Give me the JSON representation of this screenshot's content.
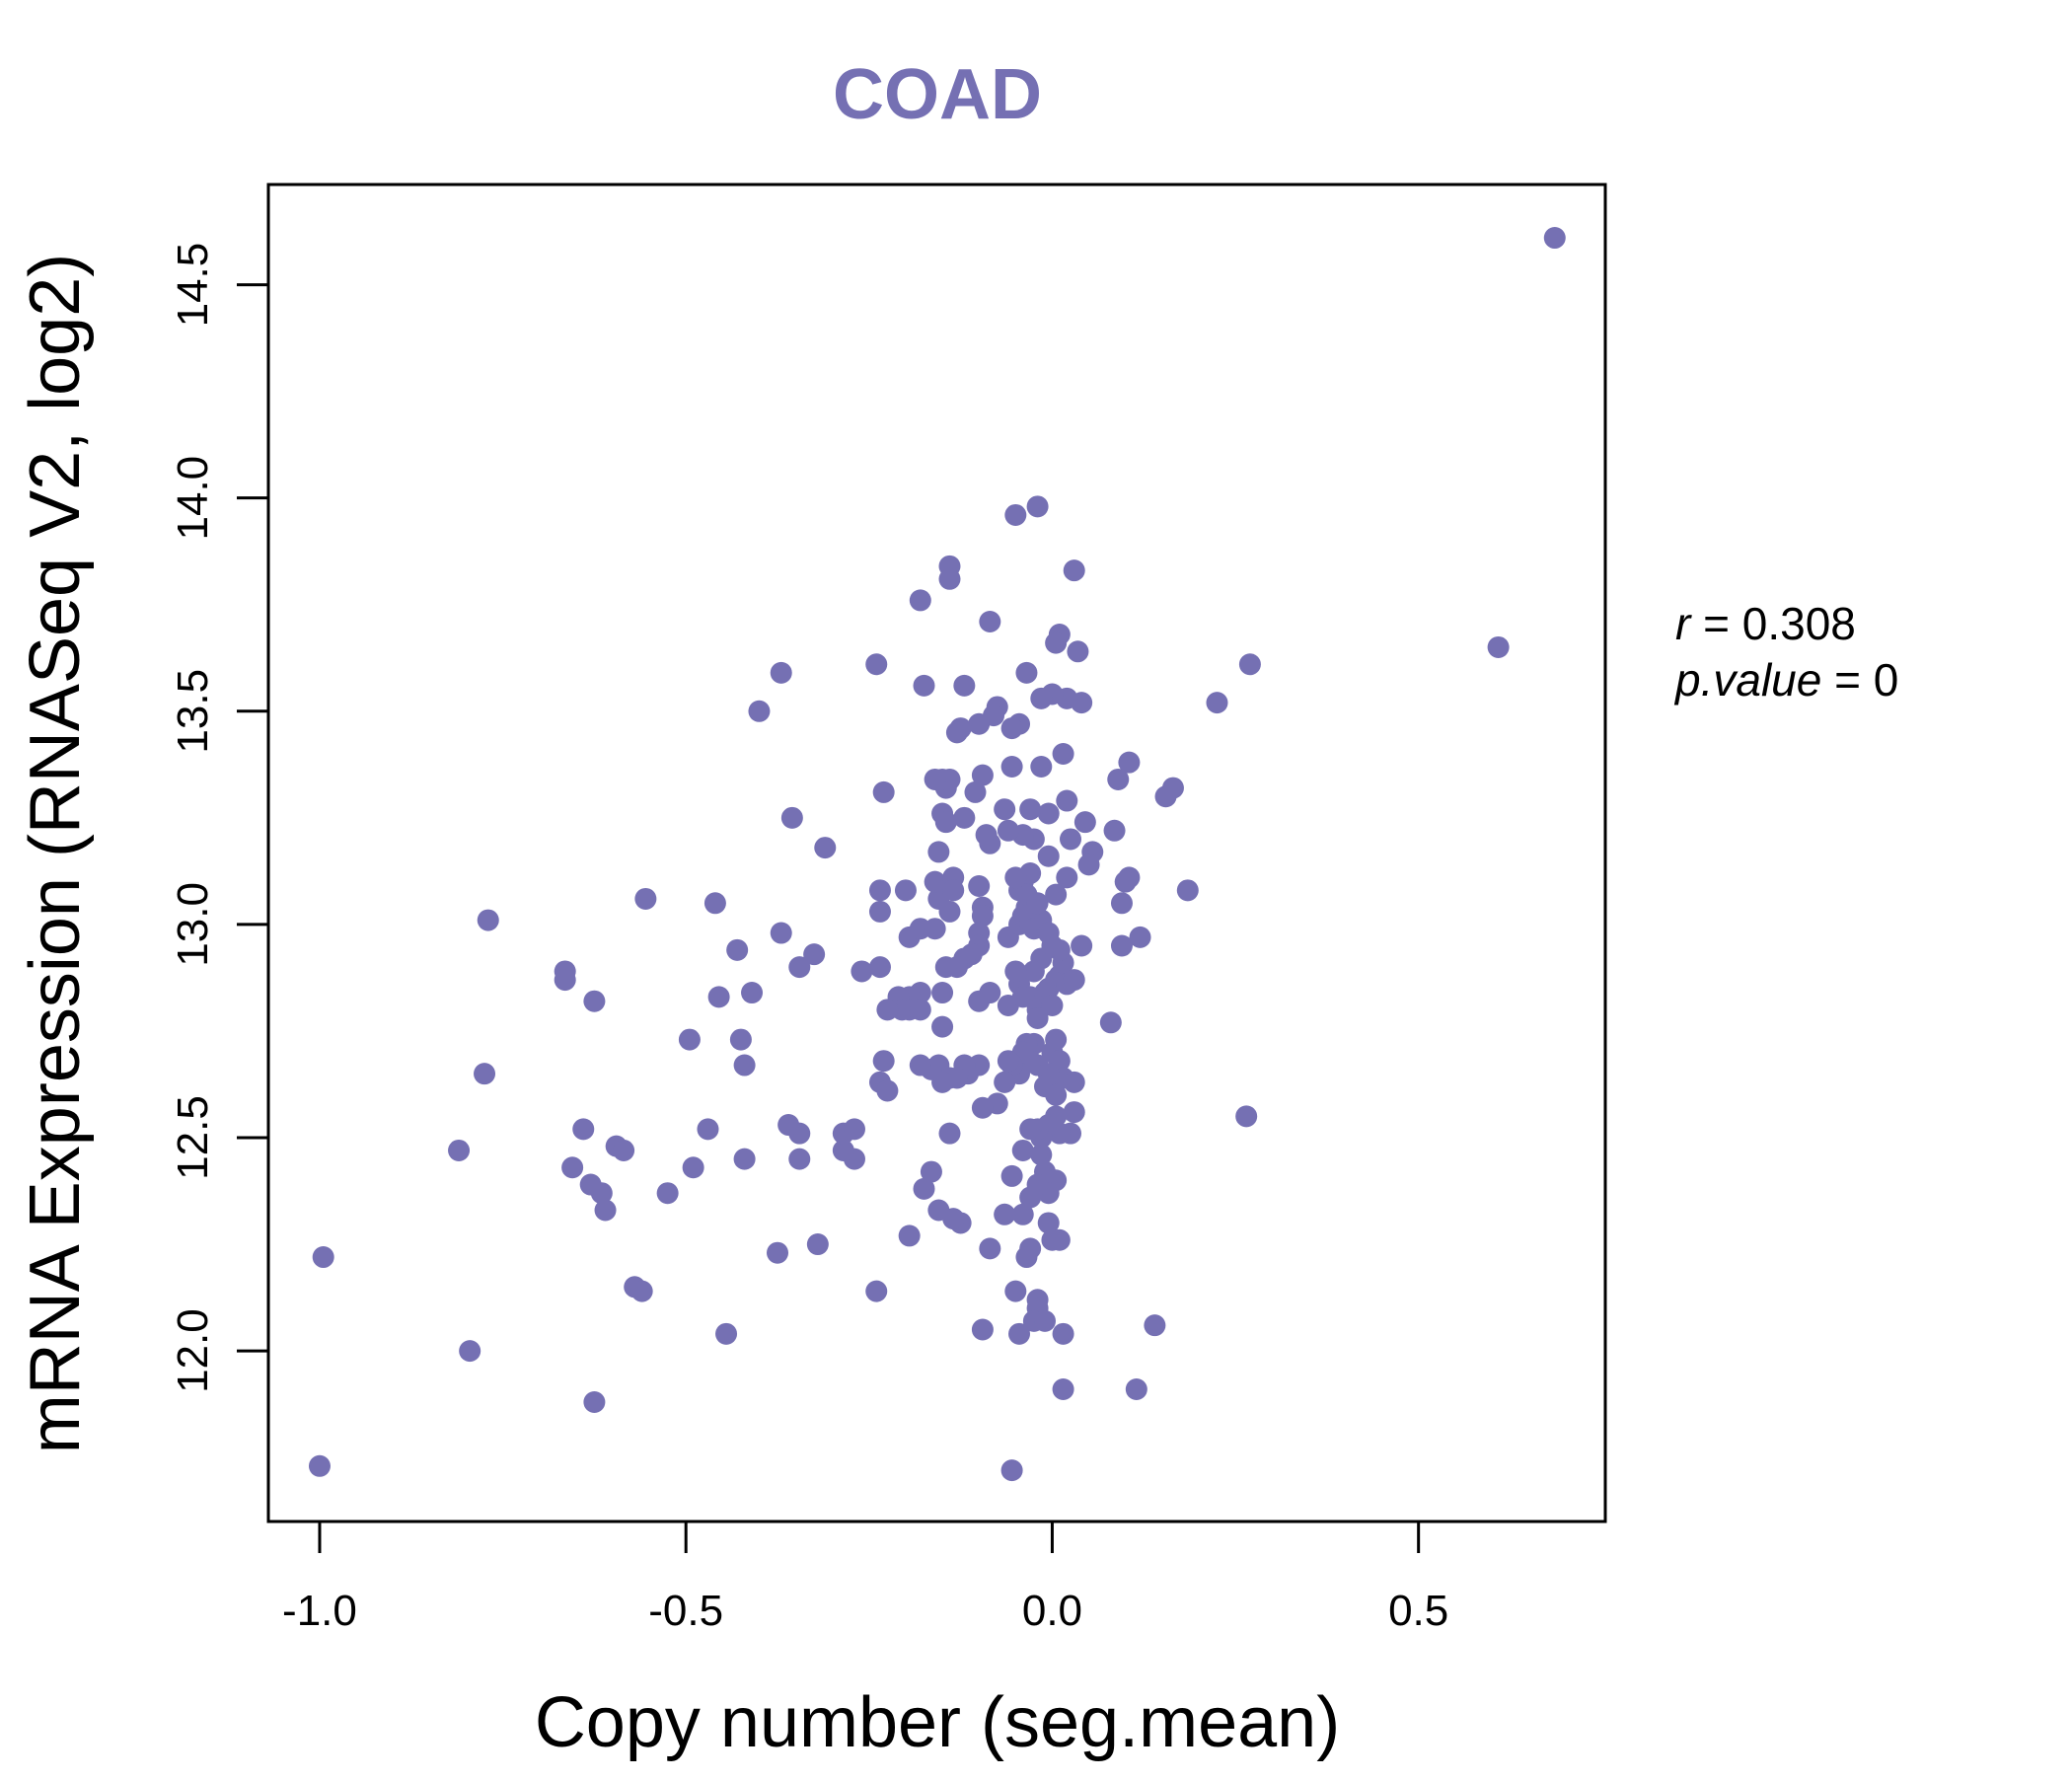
{
  "chart_data": {
    "type": "scatter",
    "title": "COAD",
    "xlabel": "Copy number (seg.mean)",
    "ylabel": "mRNA Expression (RNASeq V2, log2)",
    "xlim": [
      -1.07,
      0.755
    ],
    "ylim": [
      11.6,
      14.735
    ],
    "x_ticks": [
      -1.0,
      -0.5,
      0.0,
      0.5
    ],
    "x_tick_labels": [
      "-1.0",
      "-0.5",
      "0.0",
      "0.5"
    ],
    "y_ticks": [
      12.0,
      12.5,
      13.0,
      13.5,
      14.0,
      14.5
    ],
    "y_tick_labels": [
      "12.0",
      "12.5",
      "13.0",
      "13.5",
      "14.0",
      "14.5"
    ],
    "grid": false,
    "stats": {
      "r_label": "r",
      "r_value": "0.308",
      "p_label": "p.value",
      "p_value": "0"
    },
    "colors": {
      "accent": "#7570b3",
      "axis": "#000000",
      "background": "#ffffff"
    },
    "points": [
      {
        "x": 0.686,
        "y": 14.61
      },
      {
        "x": 0.609,
        "y": 13.65
      },
      {
        "x": 0.27,
        "y": 13.61
      },
      {
        "x": 0.225,
        "y": 13.52
      },
      {
        "x": 0.265,
        "y": 12.55
      },
      {
        "x": 0.185,
        "y": 13.08
      },
      {
        "x": 0.165,
        "y": 13.32
      },
      {
        "x": 0.155,
        "y": 13.3
      },
      {
        "x": 0.105,
        "y": 13.38
      },
      {
        "x": 0.105,
        "y": 13.11
      },
      {
        "x": 0.1,
        "y": 13.1
      },
      {
        "x": 0.095,
        "y": 13.05
      },
      {
        "x": 0.12,
        "y": 12.97
      },
      {
        "x": 0.095,
        "y": 12.95
      },
      {
        "x": 0.085,
        "y": 13.22
      },
      {
        "x": 0.09,
        "y": 13.34
      },
      {
        "x": 0.08,
        "y": 12.77
      },
      {
        "x": 0.14,
        "y": 12.06
      },
      {
        "x": 0.115,
        "y": 11.91
      },
      {
        "x": 0.055,
        "y": 13.17
      },
      {
        "x": 0.05,
        "y": 13.14
      },
      {
        "x": 0.045,
        "y": 13.24
      },
      {
        "x": 0.04,
        "y": 13.52
      },
      {
        "x": 0.035,
        "y": 13.64
      },
      {
        "x": 0.03,
        "y": 13.83
      },
      {
        "x": 0.025,
        "y": 13.2
      },
      {
        "x": 0.02,
        "y": 13.29
      },
      {
        "x": 0.02,
        "y": 13.11
      },
      {
        "x": 0.02,
        "y": 13.53
      },
      {
        "x": 0.015,
        "y": 13.4
      },
      {
        "x": 0.01,
        "y": 13.68
      },
      {
        "x": 0.005,
        "y": 13.66
      },
      {
        "x": 0.0,
        "y": 13.54
      },
      {
        "x": -0.005,
        "y": 13.26
      },
      {
        "x": -0.005,
        "y": 13.16
      },
      {
        "x": 0.005,
        "y": 13.07
      },
      {
        "x": -0.015,
        "y": 13.53
      },
      {
        "x": -0.015,
        "y": 13.37
      },
      {
        "x": -0.02,
        "y": 13.98
      },
      {
        "x": -0.025,
        "y": 13.2
      },
      {
        "x": -0.03,
        "y": 13.27
      },
      {
        "x": -0.035,
        "y": 13.59
      },
      {
        "x": -0.04,
        "y": 13.21
      },
      {
        "x": -0.045,
        "y": 13.47
      },
      {
        "x": -0.05,
        "y": 13.96
      },
      {
        "x": -0.055,
        "y": 13.46
      },
      {
        "x": -0.055,
        "y": 13.37
      },
      {
        "x": -0.06,
        "y": 13.22
      },
      {
        "x": -0.065,
        "y": 13.27
      },
      {
        "x": -0.075,
        "y": 13.51
      },
      {
        "x": -0.08,
        "y": 13.49
      },
      {
        "x": -0.085,
        "y": 13.71
      },
      {
        "x": -0.085,
        "y": 13.19
      },
      {
        "x": -0.09,
        "y": 13.21
      },
      {
        "x": -0.095,
        "y": 13.35
      },
      {
        "x": -0.1,
        "y": 13.47
      },
      {
        "x": -0.105,
        "y": 13.31
      },
      {
        "x": -0.12,
        "y": 13.56
      },
      {
        "x": -0.125,
        "y": 13.46
      },
      {
        "x": -0.12,
        "y": 13.25
      },
      {
        "x": -0.13,
        "y": 13.45
      },
      {
        "x": -0.14,
        "y": 13.84
      },
      {
        "x": -0.14,
        "y": 13.81
      },
      {
        "x": -0.14,
        "y": 13.34
      },
      {
        "x": -0.145,
        "y": 13.32
      },
      {
        "x": -0.15,
        "y": 13.34
      },
      {
        "x": -0.15,
        "y": 13.26
      },
      {
        "x": -0.145,
        "y": 13.24
      },
      {
        "x": -0.155,
        "y": 13.17
      },
      {
        "x": -0.16,
        "y": 13.34
      },
      {
        "x": -0.175,
        "y": 13.56
      },
      {
        "x": -0.18,
        "y": 13.76
      },
      {
        "x": -0.24,
        "y": 13.61
      },
      {
        "x": -0.23,
        "y": 13.31
      },
      {
        "x": -0.2,
        "y": 13.08
      },
      {
        "x": -0.235,
        "y": 13.08
      },
      {
        "x": -0.235,
        "y": 13.03
      },
      {
        "x": -0.195,
        "y": 12.97
      },
      {
        "x": -0.18,
        "y": 12.99
      },
      {
        "x": -0.16,
        "y": 12.99
      },
      {
        "x": -0.155,
        "y": 13.06
      },
      {
        "x": -0.16,
        "y": 13.1
      },
      {
        "x": -0.135,
        "y": 13.11
      },
      {
        "x": -0.135,
        "y": 13.08
      },
      {
        "x": -0.14,
        "y": 13.03
      },
      {
        "x": -0.1,
        "y": 13.09
      },
      {
        "x": -0.095,
        "y": 13.04
      },
      {
        "x": -0.095,
        "y": 13.02
      },
      {
        "x": -0.1,
        "y": 12.98
      },
      {
        "x": -0.1,
        "y": 12.95
      },
      {
        "x": -0.11,
        "y": 12.93
      },
      {
        "x": -0.12,
        "y": 12.92
      },
      {
        "x": -0.13,
        "y": 12.9
      },
      {
        "x": -0.145,
        "y": 12.9
      },
      {
        "x": -0.235,
        "y": 12.9
      },
      {
        "x": -0.26,
        "y": 12.89
      },
      {
        "x": -0.18,
        "y": 12.84
      },
      {
        "x": -0.195,
        "y": 12.83
      },
      {
        "x": -0.21,
        "y": 12.83
      },
      {
        "x": -0.195,
        "y": 12.8
      },
      {
        "x": -0.205,
        "y": 12.8
      },
      {
        "x": -0.225,
        "y": 12.8
      },
      {
        "x": -0.18,
        "y": 12.8
      },
      {
        "x": -0.15,
        "y": 12.84
      },
      {
        "x": -0.15,
        "y": 12.76
      },
      {
        "x": -0.1,
        "y": 12.82
      },
      {
        "x": -0.085,
        "y": 12.84
      },
      {
        "x": -0.06,
        "y": 12.81
      },
      {
        "x": -0.045,
        "y": 12.86
      },
      {
        "x": -0.04,
        "y": 12.83
      },
      {
        "x": -0.03,
        "y": 12.83
      },
      {
        "x": -0.02,
        "y": 12.8
      },
      {
        "x": -0.02,
        "y": 12.78
      },
      {
        "x": -0.01,
        "y": 12.84
      },
      {
        "x": -0.005,
        "y": 12.85
      },
      {
        "x": 0.0,
        "y": 12.81
      },
      {
        "x": 0.005,
        "y": 12.87
      },
      {
        "x": 0.01,
        "y": 12.88
      },
      {
        "x": 0.015,
        "y": 12.91
      },
      {
        "x": 0.02,
        "y": 12.86
      },
      {
        "x": 0.03,
        "y": 12.87
      },
      {
        "x": 0.04,
        "y": 12.95
      },
      {
        "x": 0.01,
        "y": 12.94
      },
      {
        "x": -0.015,
        "y": 12.92
      },
      {
        "x": -0.025,
        "y": 12.89
      },
      {
        "x": -0.05,
        "y": 12.89
      },
      {
        "x": -0.06,
        "y": 12.97
      },
      {
        "x": -0.045,
        "y": 13.0
      },
      {
        "x": -0.04,
        "y": 13.02
      },
      {
        "x": -0.035,
        "y": 13.04
      },
      {
        "x": -0.03,
        "y": 13.0
      },
      {
        "x": -0.025,
        "y": 12.99
      },
      {
        "x": -0.015,
        "y": 13.01
      },
      {
        "x": -0.005,
        "y": 12.98
      },
      {
        "x": 0.0,
        "y": 12.95
      },
      {
        "x": -0.045,
        "y": 13.08
      },
      {
        "x": -0.04,
        "y": 13.1
      },
      {
        "x": -0.035,
        "y": 13.07
      },
      {
        "x": -0.03,
        "y": 13.12
      },
      {
        "x": -0.05,
        "y": 13.11
      },
      {
        "x": -0.025,
        "y": 13.04
      },
      {
        "x": -0.02,
        "y": 13.05
      },
      {
        "x": 0.0,
        "y": 12.7
      },
      {
        "x": 0.005,
        "y": 12.73
      },
      {
        "x": 0.01,
        "y": 12.68
      },
      {
        "x": 0.015,
        "y": 12.64
      },
      {
        "x": -0.005,
        "y": 12.65
      },
      {
        "x": -0.01,
        "y": 12.62
      },
      {
        "x": 0.005,
        "y": 12.6
      },
      {
        "x": 0.03,
        "y": 12.63
      },
      {
        "x": 0.03,
        "y": 12.56
      },
      {
        "x": 0.025,
        "y": 12.51
      },
      {
        "x": 0.01,
        "y": 12.51
      },
      {
        "x": 0.005,
        "y": 12.55
      },
      {
        "x": -0.005,
        "y": 12.53
      },
      {
        "x": -0.015,
        "y": 12.5
      },
      {
        "x": -0.02,
        "y": 12.52
      },
      {
        "x": -0.03,
        "y": 12.52
      },
      {
        "x": -0.02,
        "y": 12.67
      },
      {
        "x": -0.025,
        "y": 12.72
      },
      {
        "x": -0.03,
        "y": 12.68
      },
      {
        "x": -0.035,
        "y": 12.72
      },
      {
        "x": -0.04,
        "y": 12.7
      },
      {
        "x": -0.045,
        "y": 12.65
      },
      {
        "x": -0.055,
        "y": 12.67
      },
      {
        "x": -0.06,
        "y": 12.68
      },
      {
        "x": -0.065,
        "y": 12.63
      },
      {
        "x": -0.075,
        "y": 12.58
      },
      {
        "x": -0.095,
        "y": 12.57
      },
      {
        "x": -0.1,
        "y": 12.67
      },
      {
        "x": -0.115,
        "y": 12.65
      },
      {
        "x": -0.12,
        "y": 12.67
      },
      {
        "x": -0.13,
        "y": 12.64
      },
      {
        "x": -0.14,
        "y": 12.64
      },
      {
        "x": -0.15,
        "y": 12.63
      },
      {
        "x": -0.155,
        "y": 12.67
      },
      {
        "x": -0.165,
        "y": 12.66
      },
      {
        "x": -0.18,
        "y": 12.67
      },
      {
        "x": -0.23,
        "y": 12.68
      },
      {
        "x": -0.235,
        "y": 12.63
      },
      {
        "x": -0.225,
        "y": 12.61
      },
      {
        "x": -0.14,
        "y": 12.51
      },
      {
        "x": -0.04,
        "y": 12.47
      },
      {
        "x": -0.015,
        "y": 12.46
      },
      {
        "x": -0.01,
        "y": 12.42
      },
      {
        "x": 0.005,
        "y": 12.4
      },
      {
        "x": -0.005,
        "y": 12.37
      },
      {
        "x": -0.02,
        "y": 12.39
      },
      {
        "x": -0.03,
        "y": 12.36
      },
      {
        "x": -0.04,
        "y": 12.32
      },
      {
        "x": -0.055,
        "y": 12.41
      },
      {
        "x": -0.065,
        "y": 12.32
      },
      {
        "x": -0.005,
        "y": 12.3
      },
      {
        "x": 0.0,
        "y": 12.26
      },
      {
        "x": 0.01,
        "y": 12.26
      },
      {
        "x": -0.03,
        "y": 12.24
      },
      {
        "x": -0.035,
        "y": 12.22
      },
      {
        "x": -0.085,
        "y": 12.24
      },
      {
        "x": -0.125,
        "y": 12.3
      },
      {
        "x": -0.135,
        "y": 12.31
      },
      {
        "x": -0.155,
        "y": 12.33
      },
      {
        "x": -0.175,
        "y": 12.38
      },
      {
        "x": -0.165,
        "y": 12.42
      },
      {
        "x": -0.195,
        "y": 12.27
      },
      {
        "x": -0.24,
        "y": 12.14
      },
      {
        "x": -0.05,
        "y": 12.14
      },
      {
        "x": -0.02,
        "y": 12.12
      },
      {
        "x": -0.02,
        "y": 12.1
      },
      {
        "x": -0.025,
        "y": 12.07
      },
      {
        "x": -0.01,
        "y": 12.07
      },
      {
        "x": -0.045,
        "y": 12.04
      },
      {
        "x": -0.095,
        "y": 12.05
      },
      {
        "x": 0.015,
        "y": 12.04
      },
      {
        "x": 0.015,
        "y": 11.91
      },
      {
        "x": -0.055,
        "y": 11.72
      },
      {
        "x": -0.27,
        "y": 12.45
      },
      {
        "x": -0.285,
        "y": 12.47
      },
      {
        "x": -0.285,
        "y": 12.51
      },
      {
        "x": -0.27,
        "y": 12.52
      },
      {
        "x": -0.32,
        "y": 12.25
      },
      {
        "x": -0.345,
        "y": 12.51
      },
      {
        "x": -0.36,
        "y": 12.53
      },
      {
        "x": -0.345,
        "y": 12.45
      },
      {
        "x": -0.375,
        "y": 12.23
      },
      {
        "x": -0.31,
        "y": 13.18
      },
      {
        "x": -0.355,
        "y": 13.25
      },
      {
        "x": -0.37,
        "y": 13.59
      },
      {
        "x": -0.4,
        "y": 13.5
      },
      {
        "x": -0.325,
        "y": 12.93
      },
      {
        "x": -0.345,
        "y": 12.9
      },
      {
        "x": -0.37,
        "y": 12.98
      },
      {
        "x": -0.41,
        "y": 12.84
      },
      {
        "x": -0.43,
        "y": 12.94
      },
      {
        "x": -0.46,
        "y": 13.05
      },
      {
        "x": -0.455,
        "y": 12.83
      },
      {
        "x": -0.425,
        "y": 12.73
      },
      {
        "x": -0.42,
        "y": 12.67
      },
      {
        "x": -0.495,
        "y": 12.73
      },
      {
        "x": -0.47,
        "y": 12.52
      },
      {
        "x": -0.42,
        "y": 12.45
      },
      {
        "x": -0.49,
        "y": 12.43
      },
      {
        "x": -0.525,
        "y": 12.37
      },
      {
        "x": -0.445,
        "y": 12.04
      },
      {
        "x": -0.555,
        "y": 13.06
      },
      {
        "x": -0.625,
        "y": 12.82
      },
      {
        "x": -0.665,
        "y": 12.89
      },
      {
        "x": -0.665,
        "y": 12.87
      },
      {
        "x": -0.64,
        "y": 12.52
      },
      {
        "x": -0.595,
        "y": 12.48
      },
      {
        "x": -0.585,
        "y": 12.47
      },
      {
        "x": -0.655,
        "y": 12.43
      },
      {
        "x": -0.63,
        "y": 12.39
      },
      {
        "x": -0.615,
        "y": 12.37
      },
      {
        "x": -0.61,
        "y": 12.33
      },
      {
        "x": -0.57,
        "y": 12.15
      },
      {
        "x": -0.56,
        "y": 12.14
      },
      {
        "x": -0.625,
        "y": 11.88
      },
      {
        "x": -0.77,
        "y": 13.01
      },
      {
        "x": -0.775,
        "y": 12.65
      },
      {
        "x": -0.81,
        "y": 12.47
      },
      {
        "x": -0.795,
        "y": 12.0
      },
      {
        "x": -0.995,
        "y": 12.22
      },
      {
        "x": -1.0,
        "y": 11.73
      }
    ]
  }
}
